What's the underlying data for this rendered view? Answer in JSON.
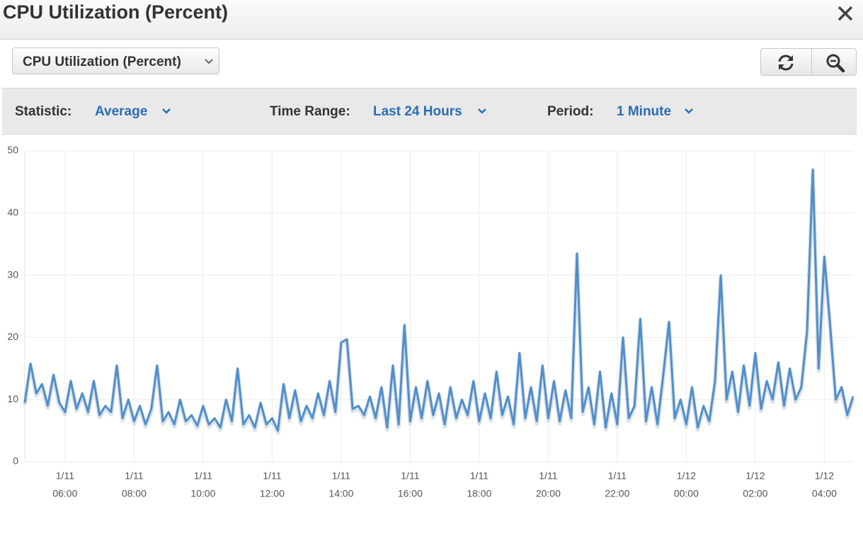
{
  "header": {
    "title": "CPU Utilization (Percent)"
  },
  "metric_select": {
    "value": "CPU Utilization (Percent)"
  },
  "controls": [
    {
      "label": "Statistic:",
      "value": "Average"
    },
    {
      "label": "Time Range:",
      "value": "Last 24 Hours"
    },
    {
      "label": "Period:",
      "value": "1 Minute"
    }
  ],
  "chart_data": {
    "type": "line",
    "x": [
      "1/11 04:50",
      "1/11 05:00",
      "1/11 05:10",
      "1/11 05:20",
      "1/11 05:30",
      "1/11 05:40",
      "1/11 05:50",
      "1/11 06:00",
      "1/11 06:10",
      "1/11 06:20",
      "1/11 06:30",
      "1/11 06:40",
      "1/11 06:50",
      "1/11 07:00",
      "1/11 07:10",
      "1/11 07:20",
      "1/11 07:30",
      "1/11 07:40",
      "1/11 07:50",
      "1/11 08:00",
      "1/11 08:10",
      "1/11 08:20",
      "1/11 08:30",
      "1/11 08:40",
      "1/11 08:50",
      "1/11 09:00",
      "1/11 09:10",
      "1/11 09:20",
      "1/11 09:30",
      "1/11 09:40",
      "1/11 09:50",
      "1/11 10:00",
      "1/11 10:10",
      "1/11 10:20",
      "1/11 10:30",
      "1/11 10:40",
      "1/11 10:50",
      "1/11 11:00",
      "1/11 11:10",
      "1/11 11:20",
      "1/11 11:30",
      "1/11 11:40",
      "1/11 11:50",
      "1/11 12:00",
      "1/11 12:10",
      "1/11 12:20",
      "1/11 12:30",
      "1/11 12:40",
      "1/11 12:50",
      "1/11 13:00",
      "1/11 13:10",
      "1/11 13:20",
      "1/11 13:30",
      "1/11 13:40",
      "1/11 13:50",
      "1/11 14:00",
      "1/11 14:10",
      "1/11 14:20",
      "1/11 14:30",
      "1/11 14:40",
      "1/11 14:50",
      "1/11 15:00",
      "1/11 15:10",
      "1/11 15:20",
      "1/11 15:30",
      "1/11 15:40",
      "1/11 15:50",
      "1/11 16:00",
      "1/11 16:10",
      "1/11 16:20",
      "1/11 16:30",
      "1/11 16:40",
      "1/11 16:50",
      "1/11 17:00",
      "1/11 17:10",
      "1/11 17:20",
      "1/11 17:30",
      "1/11 17:40",
      "1/11 17:50",
      "1/11 18:00",
      "1/11 18:10",
      "1/11 18:20",
      "1/11 18:30",
      "1/11 18:40",
      "1/11 18:50",
      "1/11 19:00",
      "1/11 19:10",
      "1/11 19:20",
      "1/11 19:30",
      "1/11 19:40",
      "1/11 19:50",
      "1/11 20:00",
      "1/11 20:10",
      "1/11 20:20",
      "1/11 20:30",
      "1/11 20:40",
      "1/11 20:50",
      "1/11 21:00",
      "1/11 21:10",
      "1/11 21:20",
      "1/11 21:30",
      "1/11 21:40",
      "1/11 21:50",
      "1/11 22:00",
      "1/11 22:10",
      "1/11 22:20",
      "1/11 22:30",
      "1/11 22:40",
      "1/11 22:50",
      "1/11 23:00",
      "1/11 23:10",
      "1/11 23:20",
      "1/11 23:30",
      "1/11 23:40",
      "1/11 23:50",
      "1/12 00:00",
      "1/12 00:10",
      "1/12 00:20",
      "1/12 00:30",
      "1/12 00:40",
      "1/12 00:50",
      "1/12 01:00",
      "1/12 01:10",
      "1/12 01:20",
      "1/12 01:30",
      "1/12 01:40",
      "1/12 01:50",
      "1/12 02:00",
      "1/12 02:10",
      "1/12 02:20",
      "1/12 02:30",
      "1/12 02:40",
      "1/12 02:50",
      "1/12 03:00",
      "1/12 03:10",
      "1/12 03:20",
      "1/12 03:30",
      "1/12 03:40",
      "1/12 03:50",
      "1/12 04:00",
      "1/12 04:10",
      "1/12 04:20",
      "1/12 04:30",
      "1/12 04:40",
      "1/12 04:50"
    ],
    "series": [
      {
        "color": "#4f8fcb",
        "values": [
          9.5,
          15.8,
          11,
          12.5,
          9,
          14,
          9.5,
          8,
          13,
          8.5,
          11,
          8,
          13,
          7.5,
          9,
          8,
          15.5,
          7,
          10,
          6.5,
          9,
          6,
          8.5,
          15.5,
          6.5,
          8,
          6,
          10,
          6.5,
          7.5,
          5.8,
          9,
          6,
          7,
          5.5,
          10,
          6.5,
          15,
          6,
          7.5,
          5.5,
          9.5,
          6,
          7,
          5,
          12.5,
          7,
          11.5,
          6.5,
          9,
          7,
          11,
          7.5,
          13,
          8,
          19.2,
          19.7,
          8.5,
          9,
          7.5,
          10.5,
          7,
          12,
          5.5,
          15.5,
          6,
          22,
          6.5,
          12,
          7,
          13,
          7.5,
          11,
          6,
          12,
          7,
          10,
          7.5,
          13,
          6.5,
          11,
          7,
          14.5,
          7.5,
          10.5,
          6,
          17.5,
          7,
          12,
          6.5,
          15.5,
          7,
          13,
          6.5,
          11.5,
          7,
          33.5,
          8,
          12,
          6,
          14.5,
          5.5,
          11,
          6,
          20,
          7,
          9,
          23,
          6.5,
          12,
          6,
          14,
          22.5,
          7,
          10,
          6,
          12,
          5.5,
          9,
          6.5,
          13,
          30,
          10,
          14.5,
          8,
          15.5,
          9,
          17.5,
          8.5,
          13,
          10,
          16,
          9,
          15,
          10,
          12,
          21,
          47,
          15,
          33,
          22,
          10,
          12,
          7.5,
          10.5
        ]
      }
    ],
    "xlim": [
      "1/11 04:50",
      "1/12 04:50"
    ],
    "xticks": [
      {
        "date": "1/11",
        "time": "06:00"
      },
      {
        "date": "1/11",
        "time": "08:00"
      },
      {
        "date": "1/11",
        "time": "10:00"
      },
      {
        "date": "1/11",
        "time": "12:00"
      },
      {
        "date": "1/11",
        "time": "14:00"
      },
      {
        "date": "1/11",
        "time": "16:00"
      },
      {
        "date": "1/11",
        "time": "18:00"
      },
      {
        "date": "1/11",
        "time": "20:00"
      },
      {
        "date": "1/11",
        "time": "22:00"
      },
      {
        "date": "1/12",
        "time": "00:00"
      },
      {
        "date": "1/12",
        "time": "02:00"
      },
      {
        "date": "1/12",
        "time": "04:00"
      }
    ],
    "ylim": [
      0,
      50
    ],
    "yticks": [
      0,
      10,
      20,
      30,
      40,
      50
    ],
    "grid": true
  }
}
